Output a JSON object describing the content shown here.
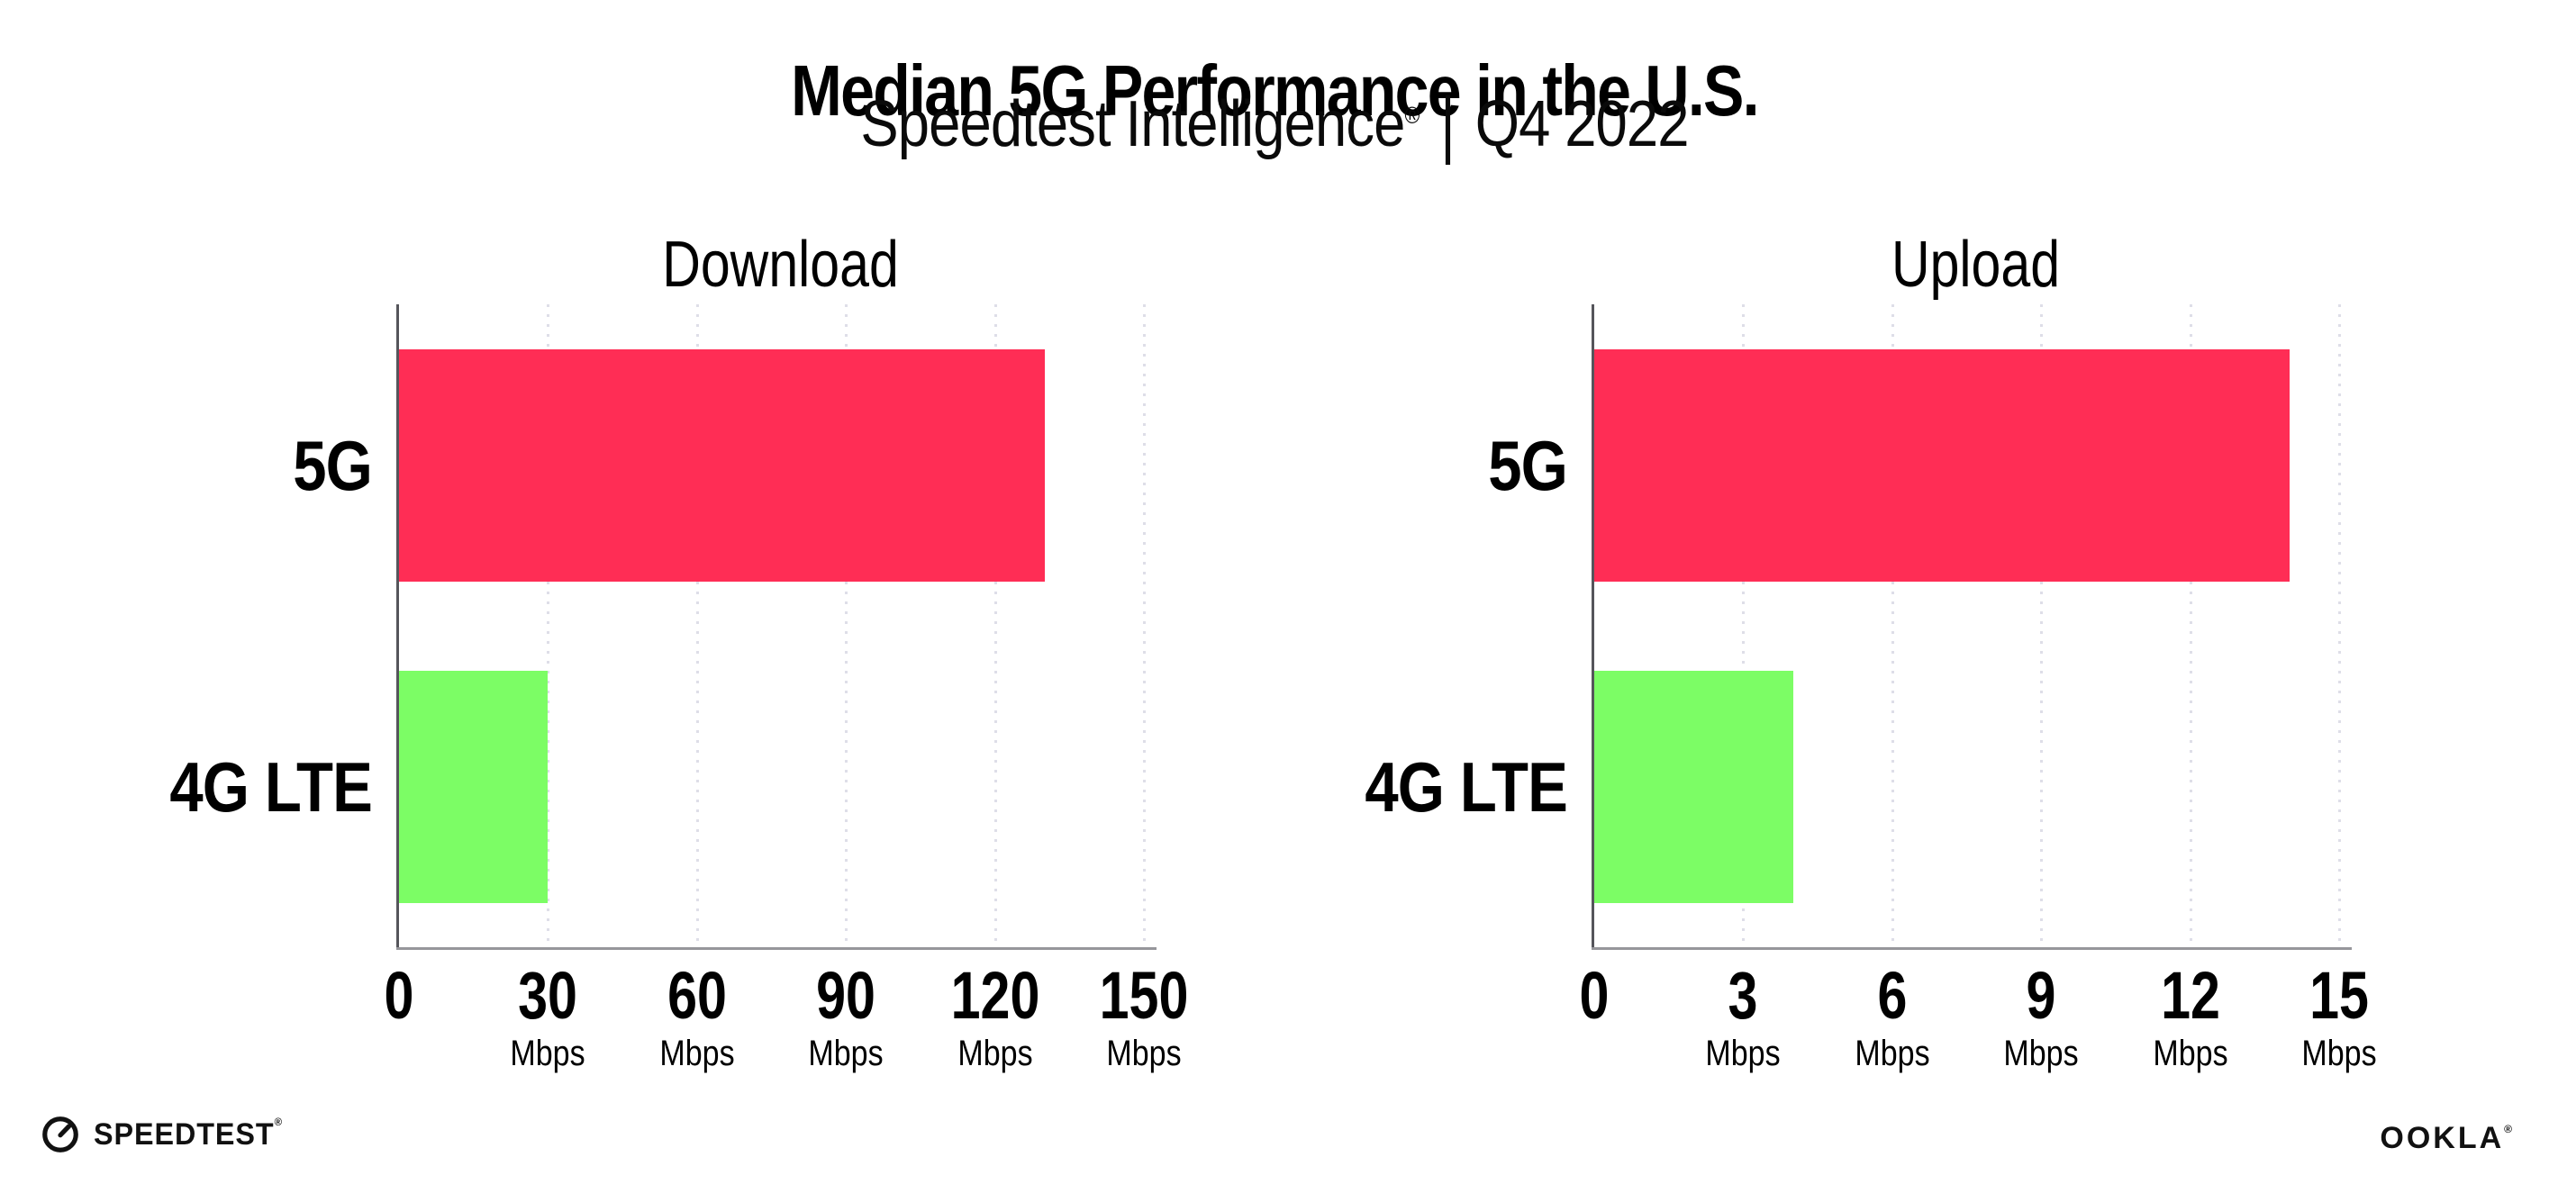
{
  "page": {
    "title": "Median 5G Performance in the U.S.",
    "subtitle": {
      "brand": "Speedtest Intelligence",
      "registered_mark": "®",
      "separator": "|",
      "period": "Q4 2022"
    }
  },
  "footer": {
    "speedtest_wordmark": "SPEEDTEST",
    "speedtest_registered_mark": "®",
    "ookla_wordmark": "OOKLA",
    "ookla_registered_mark": "®"
  },
  "colors": {
    "bar_5g": "#FF2D55",
    "bar_4g_lte": "#7CFD65",
    "gridline": "#DEDEE8",
    "axis_x": "#96969B",
    "axis_y": "#55555B",
    "text": "#000000"
  },
  "chart_data": [
    {
      "type": "bar",
      "orientation": "horizontal",
      "title": "Download",
      "categories": [
        "5G",
        "4G LTE"
      ],
      "values": [
        130,
        30
      ],
      "unit": "Mbps",
      "xlabel": "",
      "ylabel": "",
      "xlim": [
        0,
        150
      ],
      "xticks": [
        0,
        30,
        60,
        90,
        120,
        150
      ],
      "grid": "vertical-dotted",
      "legend": "none",
      "bar_colors": [
        "#FF2D55",
        "#7CFD65"
      ]
    },
    {
      "type": "bar",
      "orientation": "horizontal",
      "title": "Upload",
      "categories": [
        "5G",
        "4G LTE"
      ],
      "values": [
        14,
        4
      ],
      "unit": "Mbps",
      "xlabel": "",
      "ylabel": "",
      "xlim": [
        0,
        15
      ],
      "xticks": [
        0,
        3,
        6,
        9,
        12,
        15
      ],
      "grid": "vertical-dotted",
      "legend": "none",
      "bar_colors": [
        "#FF2D55",
        "#7CFD65"
      ]
    }
  ]
}
